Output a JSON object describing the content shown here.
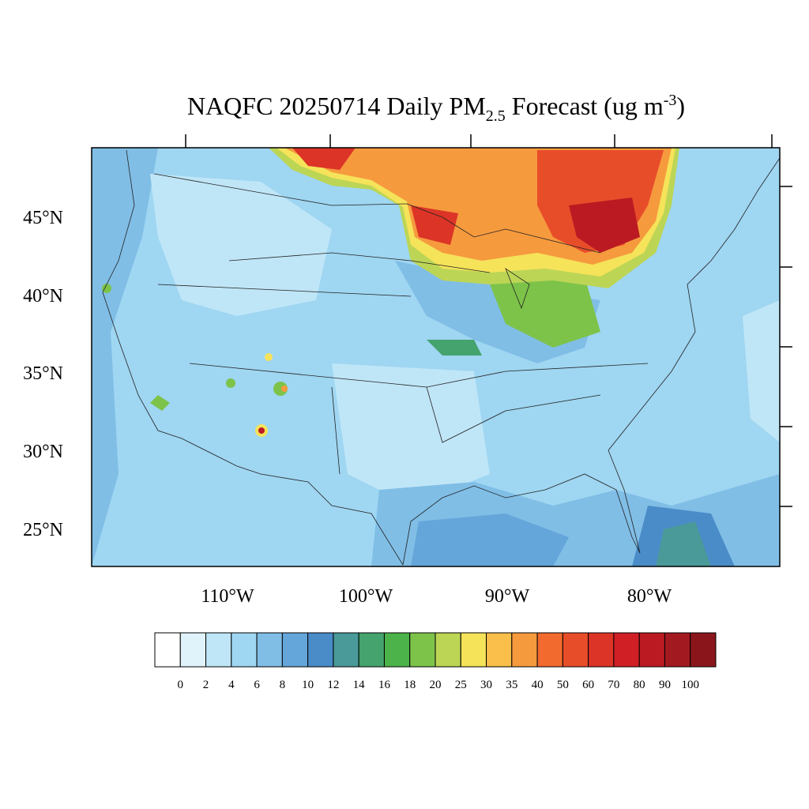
{
  "title": {
    "main": "NAQFC 20250714 Daily PM",
    "subscript": "2.5",
    "middle": " Forecast (ug m",
    "superscript": "-3",
    "end": ")"
  },
  "map": {
    "lat_labels": [
      "45°N",
      "40°N",
      "35°N",
      "30°N",
      "25°N"
    ],
    "lon_labels": [
      "110°W",
      "100°W",
      "90°W",
      "80°W"
    ]
  },
  "colorbar": {
    "levels": [
      0,
      2,
      4,
      6,
      8,
      10,
      12,
      14,
      16,
      18,
      20,
      25,
      30,
      35,
      40,
      50,
      60,
      70,
      80,
      90,
      100
    ],
    "colors": [
      "#ffffff",
      "#e0f3fb",
      "#bfe6f7",
      "#9fd6f2",
      "#80bee6",
      "#64a6da",
      "#4a8cc8",
      "#4a9a9a",
      "#45a36e",
      "#4cb34a",
      "#7dc34a",
      "#bcd555",
      "#f5e35a",
      "#f9bf4a",
      "#f69a3e",
      "#f26a2e",
      "#e84d2a",
      "#dc3427",
      "#d11f26",
      "#bb1a22",
      "#a31920",
      "#8a161c"
    ]
  }
}
